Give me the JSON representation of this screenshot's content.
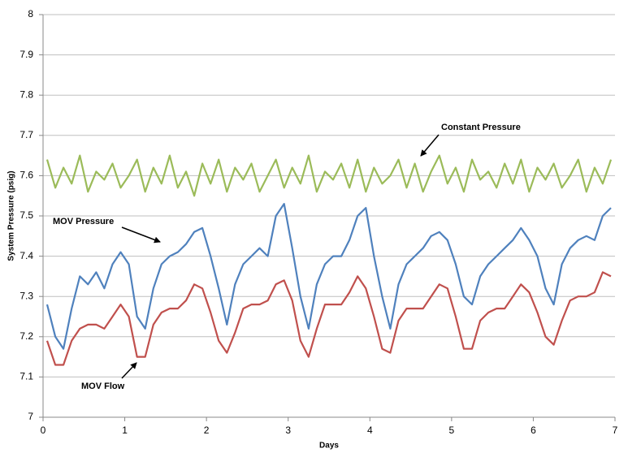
{
  "chart_data": {
    "type": "line",
    "x_label": "Days",
    "y_label": "System Pressure (psig)",
    "xlim": [
      0,
      7
    ],
    "xticks": [
      0,
      1,
      2,
      3,
      4,
      5,
      6,
      7
    ],
    "ylim": [
      7,
      8
    ],
    "yticks": [
      7,
      7.1,
      7.2,
      7.3,
      7.4,
      7.5,
      7.6,
      7.7,
      7.8,
      7.9,
      8
    ],
    "grid": true,
    "x": [
      0.05,
      0.15,
      0.25,
      0.35,
      0.45,
      0.55,
      0.65,
      0.75,
      0.85,
      0.95,
      1.05,
      1.15,
      1.25,
      1.35,
      1.45,
      1.55,
      1.65,
      1.75,
      1.85,
      1.95,
      2.05,
      2.15,
      2.25,
      2.35,
      2.45,
      2.55,
      2.65,
      2.75,
      2.85,
      2.95,
      3.05,
      3.15,
      3.25,
      3.35,
      3.45,
      3.55,
      3.65,
      3.75,
      3.85,
      3.95,
      4.05,
      4.15,
      4.25,
      4.35,
      4.45,
      4.55,
      4.65,
      4.75,
      4.85,
      4.95,
      5.05,
      5.15,
      5.25,
      5.35,
      5.45,
      5.55,
      5.65,
      5.75,
      5.85,
      5.95,
      6.05,
      6.15,
      6.25,
      6.35,
      6.45,
      6.55,
      6.65,
      6.75,
      6.85,
      6.95
    ],
    "series": [
      {
        "name": "Constant Pressure",
        "color": "#9bbb59",
        "values": [
          7.64,
          7.57,
          7.62,
          7.58,
          7.65,
          7.56,
          7.61,
          7.59,
          7.63,
          7.57,
          7.6,
          7.64,
          7.56,
          7.62,
          7.58,
          7.65,
          7.57,
          7.61,
          7.55,
          7.63,
          7.58,
          7.64,
          7.56,
          7.62,
          7.59,
          7.63,
          7.56,
          7.6,
          7.64,
          7.57,
          7.62,
          7.58,
          7.65,
          7.56,
          7.61,
          7.59,
          7.63,
          7.57,
          7.64,
          7.56,
          7.62,
          7.58,
          7.6,
          7.64,
          7.57,
          7.63,
          7.56,
          7.61,
          7.65,
          7.58,
          7.62,
          7.56,
          7.64,
          7.59,
          7.61,
          7.57,
          7.63,
          7.58,
          7.64,
          7.56,
          7.62,
          7.59,
          7.63,
          7.57,
          7.6,
          7.64,
          7.56,
          7.62,
          7.58,
          7.64
        ]
      },
      {
        "name": "MOV Pressure",
        "color": "#4f81bd",
        "values": [
          7.28,
          7.2,
          7.17,
          7.27,
          7.35,
          7.33,
          7.36,
          7.32,
          7.38,
          7.41,
          7.38,
          7.25,
          7.22,
          7.32,
          7.38,
          7.4,
          7.41,
          7.43,
          7.46,
          7.47,
          7.4,
          7.32,
          7.23,
          7.33,
          7.38,
          7.4,
          7.42,
          7.4,
          7.5,
          7.53,
          7.42,
          7.3,
          7.22,
          7.33,
          7.38,
          7.4,
          7.4,
          7.44,
          7.5,
          7.52,
          7.4,
          7.3,
          7.22,
          7.33,
          7.38,
          7.4,
          7.42,
          7.45,
          7.46,
          7.44,
          7.38,
          7.3,
          7.28,
          7.35,
          7.38,
          7.4,
          7.42,
          7.44,
          7.47,
          7.44,
          7.4,
          7.32,
          7.28,
          7.38,
          7.42,
          7.44,
          7.45,
          7.44,
          7.5,
          7.52
        ]
      },
      {
        "name": "MOV Flow",
        "color": "#c0504d",
        "values": [
          7.19,
          7.13,
          7.13,
          7.19,
          7.22,
          7.23,
          7.23,
          7.22,
          7.25,
          7.28,
          7.25,
          7.15,
          7.15,
          7.23,
          7.26,
          7.27,
          7.27,
          7.29,
          7.33,
          7.32,
          7.26,
          7.19,
          7.16,
          7.21,
          7.27,
          7.28,
          7.28,
          7.29,
          7.33,
          7.34,
          7.29,
          7.19,
          7.15,
          7.22,
          7.28,
          7.28,
          7.28,
          7.31,
          7.35,
          7.32,
          7.25,
          7.17,
          7.16,
          7.24,
          7.27,
          7.27,
          7.27,
          7.3,
          7.33,
          7.32,
          7.25,
          7.17,
          7.17,
          7.24,
          7.26,
          7.27,
          7.27,
          7.3,
          7.33,
          7.31,
          7.26,
          7.2,
          7.18,
          7.24,
          7.29,
          7.3,
          7.3,
          7.31,
          7.36,
          7.35
        ]
      }
    ]
  }
}
